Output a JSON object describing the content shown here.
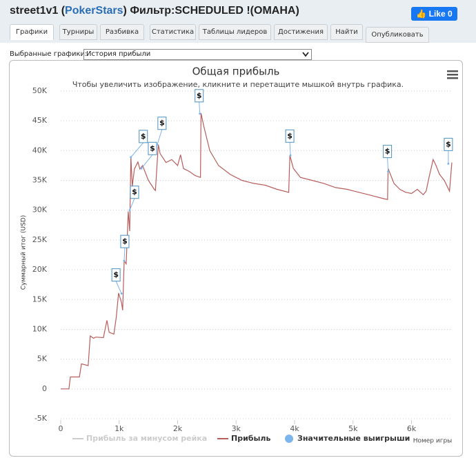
{
  "header": {
    "title_prefix": "street1v1 (",
    "site": "PokerStars",
    "title_suffix": ") Фильтр:SCHEDULED !(OMAHA)",
    "like_label": "Like",
    "like_count": 0
  },
  "tabs": [
    "Графики",
    "Турниры",
    "Разбивка",
    "Статистика",
    "Таблицы лидеров",
    "Достижения",
    "Найти",
    "Опубликовать"
  ],
  "selector": {
    "label": "Выбранные графики:",
    "value": "История прибыли"
  },
  "chart_data": {
    "type": "line",
    "title": "Общая прибыль",
    "subtitle": "Чтобы увеличить изображение, кликните и перетащите мышкой внутрь графика.",
    "y_label": "Суммарный итог (USD)",
    "x_label": "Номер игры",
    "flag_label": "$",
    "xlim": [
      0,
      6690
    ],
    "ylim": [
      -5000,
      50000
    ],
    "xticks": [
      0,
      {
        "value": 1000,
        "label": "1k"
      },
      {
        "value": 2000,
        "label": "2k"
      },
      {
        "value": 3000,
        "label": "3k"
      },
      {
        "value": 4000,
        "label": "4k"
      },
      {
        "value": 5000,
        "label": "5k"
      },
      {
        "value": 6000,
        "label": "6k"
      }
    ],
    "yticks": [
      {
        "value": -5000,
        "label": "-5K"
      },
      0,
      {
        "value": 5000,
        "label": "5K"
      },
      {
        "value": 10000,
        "label": "10K"
      },
      {
        "value": 15000,
        "label": "15K"
      },
      {
        "value": 20000,
        "label": "20K"
      },
      {
        "value": 25000,
        "label": "25K"
      },
      {
        "value": 30000,
        "label": "30K"
      },
      {
        "value": 35000,
        "label": "35K"
      },
      {
        "value": 40000,
        "label": "40K"
      },
      {
        "value": 45000,
        "label": "45K"
      },
      {
        "value": 50000,
        "label": "50K"
      }
    ],
    "grid": true,
    "series": [
      {
        "name": "Прибыль за минусом рейка",
        "color": "#cccccc",
        "visible": false
      },
      {
        "name": "Прибыль",
        "color": "#b85c5c",
        "visible": true,
        "x": [
          0,
          140,
          165,
          320,
          355,
          470,
          505,
          560,
          600,
          730,
          790,
          830,
          910,
          950,
          990,
          1040,
          1060,
          1085,
          1120,
          1155,
          1180,
          1200,
          1225,
          1260,
          1320,
          1355,
          1400,
          1500,
          1600,
          1620,
          1670,
          1700,
          1800,
          1900,
          2000,
          2050,
          2100,
          2200,
          2300,
          2390,
          2400,
          2450,
          2550,
          2700,
          2900,
          3100,
          3300,
          3500,
          3700,
          3900,
          3920,
          3980,
          4100,
          4300,
          4500,
          4700,
          4900,
          5100,
          5300,
          5500,
          5590,
          5600,
          5700,
          5800,
          5900,
          6000,
          6100,
          6200,
          6250,
          6300,
          6370,
          6420,
          6480,
          6560,
          6650,
          6690
        ],
        "values": [
          0,
          0,
          2000,
          2000,
          4200,
          3900,
          8900,
          8500,
          8700,
          8600,
          11500,
          9500,
          9200,
          12000,
          16100,
          14500,
          13200,
          21500,
          21000,
          29800,
          26500,
          38900,
          34000,
          36900,
          38100,
          36900,
          37500,
          35000,
          33500,
          33300,
          41000,
          39500,
          38000,
          38500,
          37500,
          39300,
          37000,
          36500,
          35800,
          35500,
          46300,
          44000,
          40000,
          37500,
          36000,
          35000,
          34500,
          34200,
          33500,
          33000,
          39200,
          37000,
          35500,
          35000,
          34500,
          33800,
          33500,
          33000,
          32500,
          32000,
          31800,
          37000,
          34500,
          33500,
          33000,
          32800,
          33500,
          32600,
          33200,
          35500,
          38500,
          37500,
          36000,
          35000,
          33200,
          38000
        ]
      },
      {
        "name": "Значительные выигрыши",
        "color": "#7cb5ec",
        "visible": true,
        "x": [
          1040,
          1085,
          1180,
          1200,
          1380,
          1650,
          2380,
          3930,
          5600,
          6630
        ],
        "values": [
          16000,
          21500,
          30000,
          38900,
          37000,
          41000,
          46200,
          39200,
          36500,
          37800
        ]
      }
    ]
  }
}
